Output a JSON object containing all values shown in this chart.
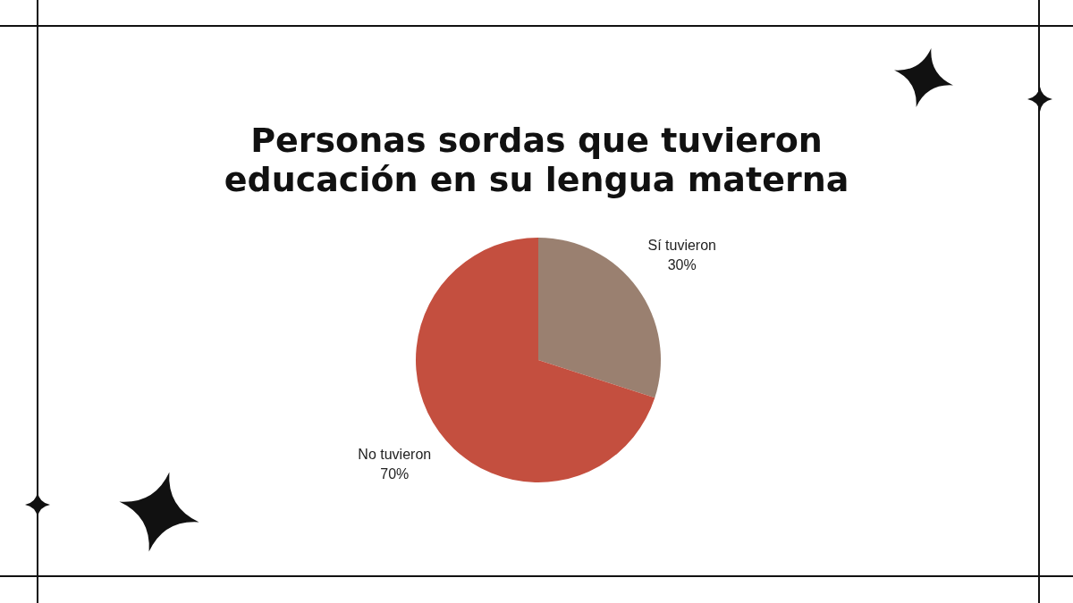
{
  "chart_data": {
    "type": "pie",
    "title": "Personas sordas que tuvieron educación en su lengua materna",
    "categories": [
      "Sí tuvieron",
      "No tuvieron"
    ],
    "values": [
      30,
      70
    ],
    "value_labels": [
      "30%",
      "70%"
    ],
    "colors": [
      "#9a8070",
      "#c44f3f"
    ]
  }
}
